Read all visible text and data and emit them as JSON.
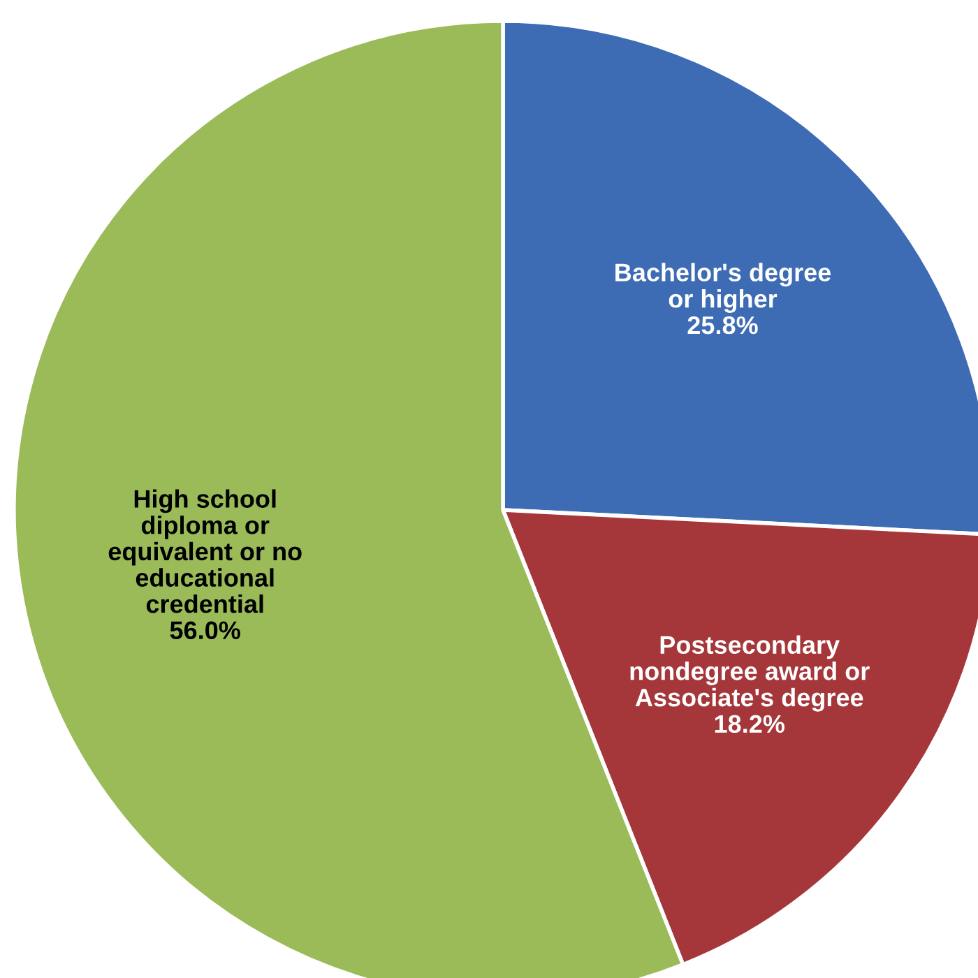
{
  "chart_data": {
    "type": "pie",
    "categories": [
      "Bachelor's degree\nor higher",
      "Postsecondary\nnondegree award or\nAssociate's degree",
      "High school\ndiploma or\nequivalent or no\neducational\ncredential"
    ],
    "values": [
      25.8,
      18.2,
      56.0
    ],
    "colors": [
      "#3d6cb5",
      "#a5373a",
      "#9bbb59"
    ],
    "value_labels": [
      "25.8%",
      "18.2%",
      "56.0%"
    ]
  }
}
